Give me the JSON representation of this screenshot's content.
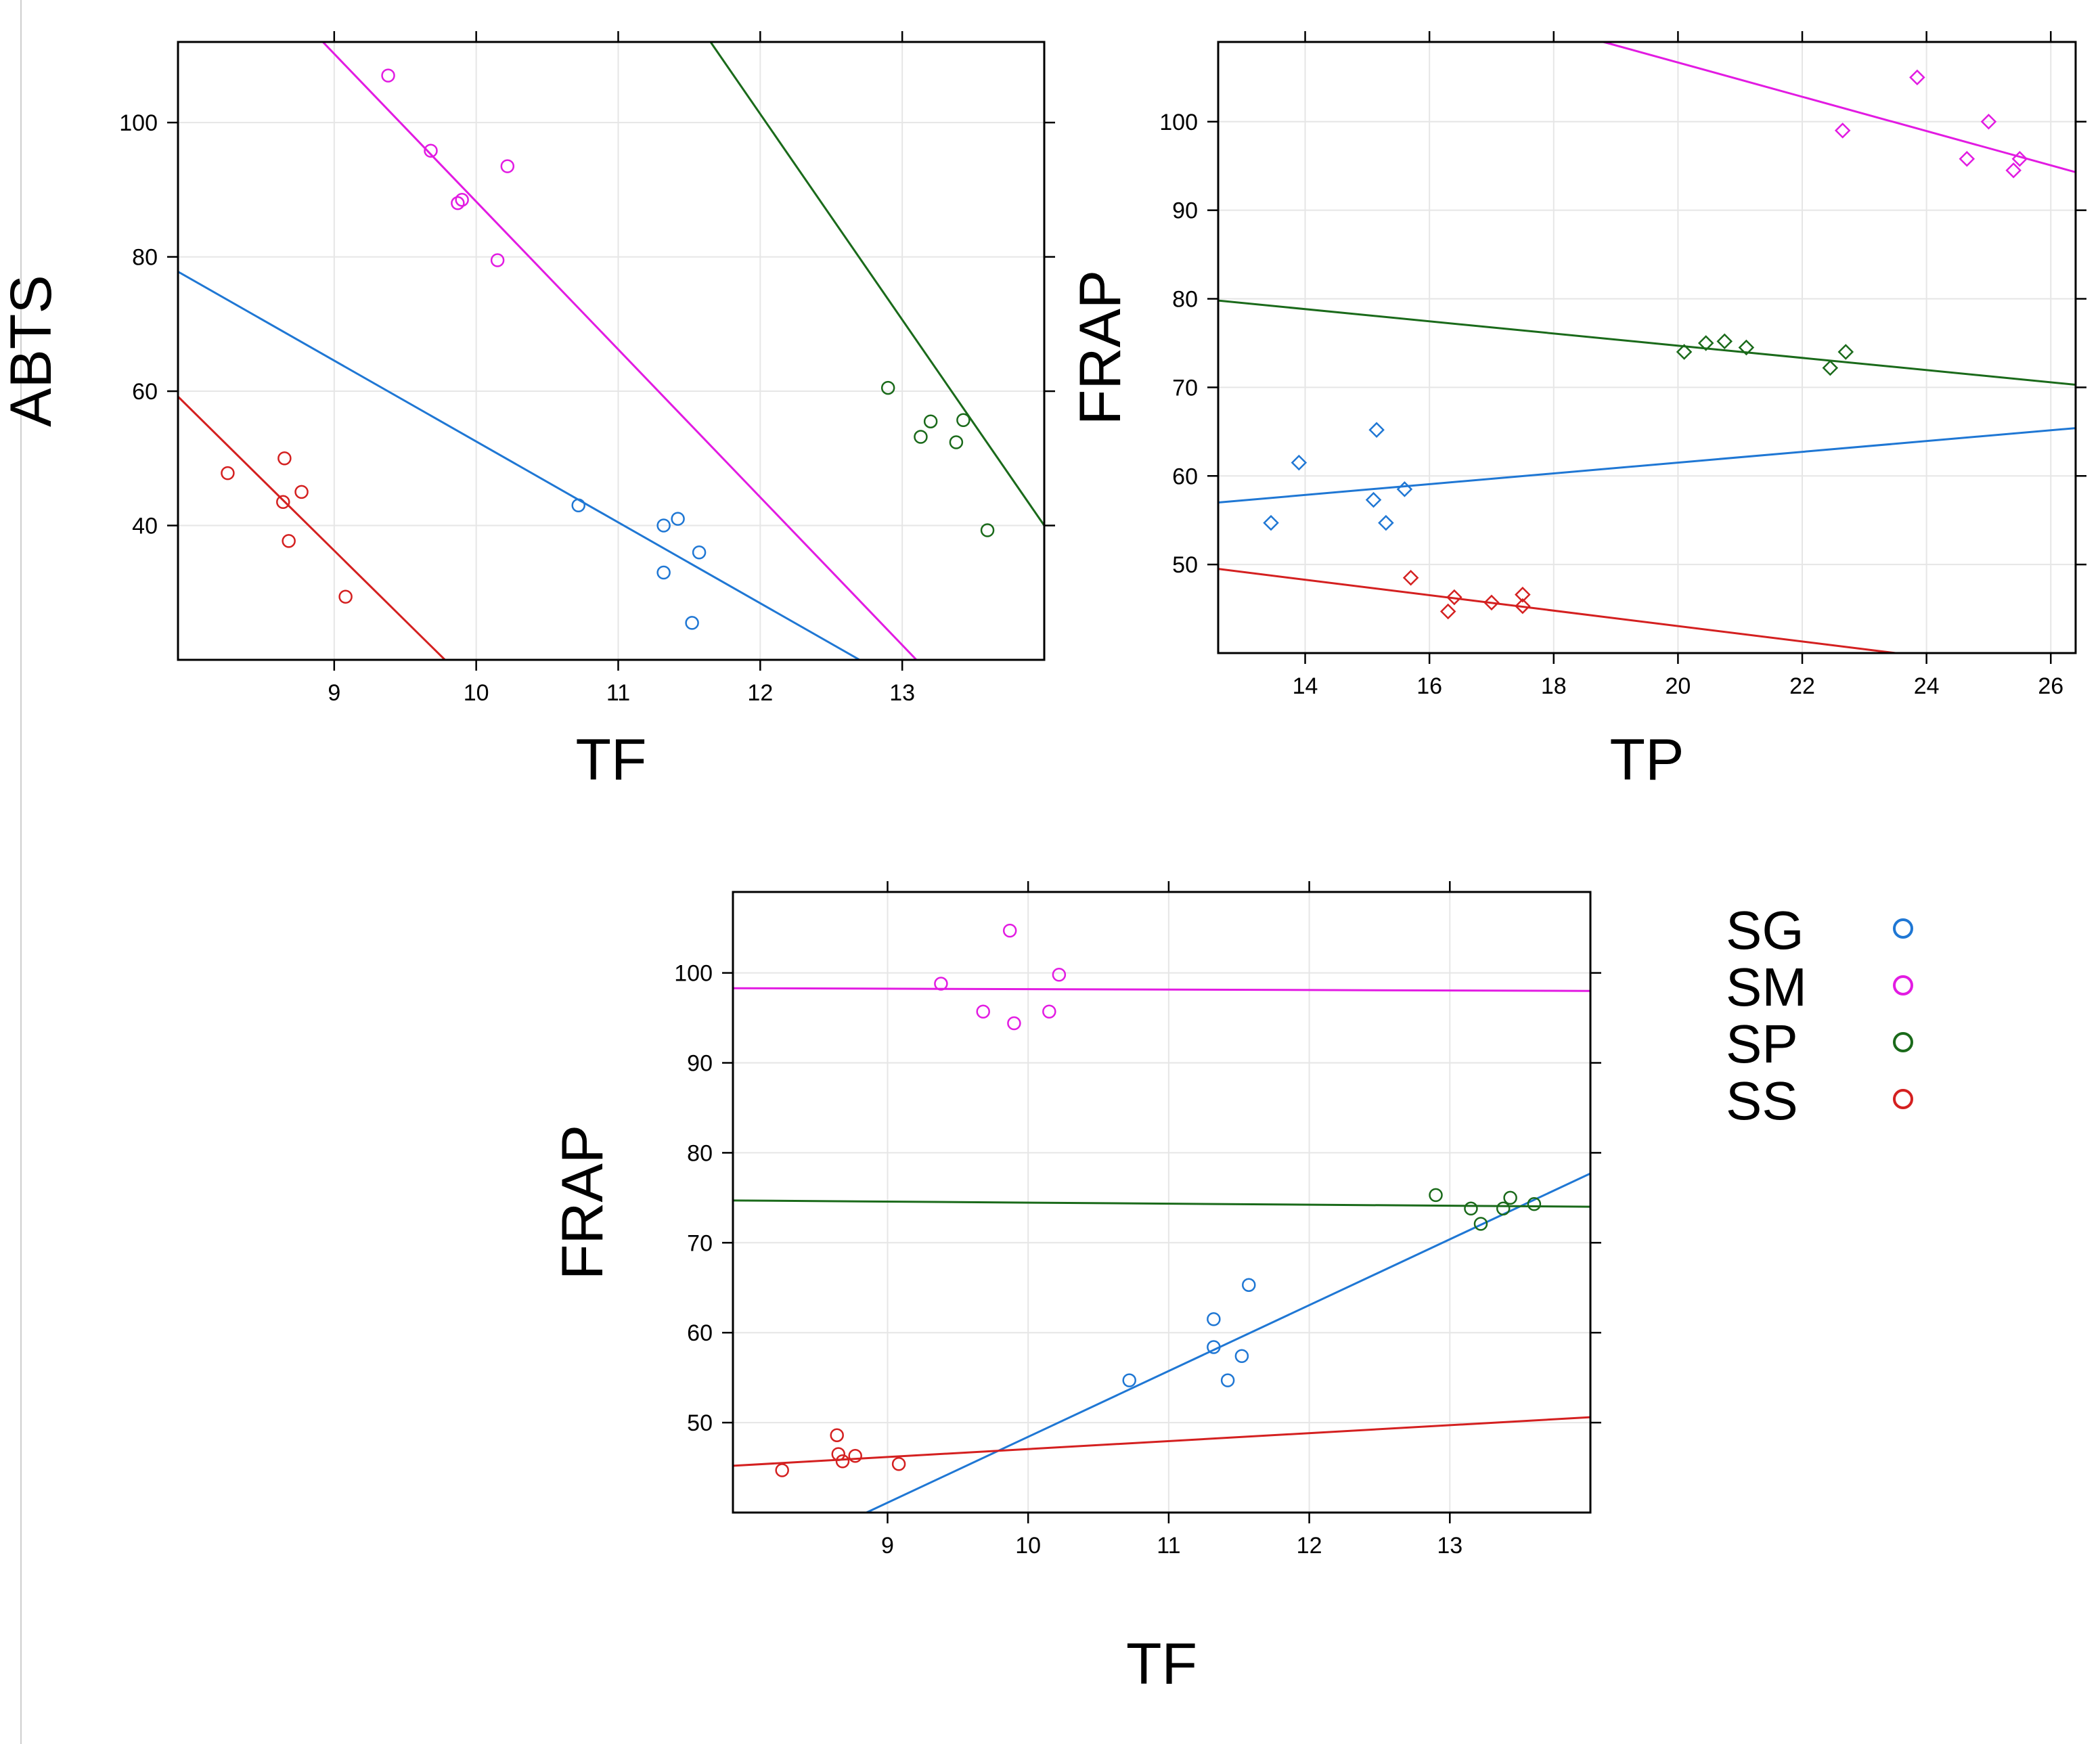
{
  "legend": {
    "items": [
      {
        "name": "SG",
        "color": "#1f77d4"
      },
      {
        "name": "SM",
        "color": "#e21be2"
      },
      {
        "name": "SP",
        "color": "#1a6a1a"
      },
      {
        "name": "SS",
        "color": "#d42020"
      }
    ]
  },
  "chart_data": [
    {
      "id": "panel-a",
      "type": "scatter",
      "xlabel": "TF",
      "ylabel": "ABTS",
      "xlim": [
        7.9,
        14.0
      ],
      "ylim": [
        20,
        112
      ],
      "xticks": [
        9,
        10,
        11,
        12,
        13
      ],
      "yticks": [
        40,
        60,
        80,
        100
      ],
      "marker": "circle",
      "series": [
        {
          "name": "SG",
          "color": "#1f77d4",
          "points": [
            [
              10.72,
              43
            ],
            [
              11.32,
              40
            ],
            [
              11.42,
              41
            ],
            [
              11.32,
              33
            ],
            [
              11.57,
              36
            ],
            [
              11.52,
              25.5
            ]
          ],
          "fit": [
            [
              7.9,
              77.8
            ],
            [
              12.7,
              20
            ]
          ]
        },
        {
          "name": "SM",
          "color": "#e21be2",
          "points": [
            [
              9.38,
              107
            ],
            [
              9.68,
              95.8
            ],
            [
              9.87,
              88
            ],
            [
              9.9,
              88.5
            ],
            [
              10.22,
              93.5
            ],
            [
              10.15,
              79.5
            ]
          ],
          "fit": [
            [
              8.92,
              112
            ],
            [
              13.1,
              20
            ]
          ]
        },
        {
          "name": "SP",
          "color": "#1a6a1a",
          "points": [
            [
              12.9,
              60.5
            ],
            [
              13.2,
              55.5
            ],
            [
              13.43,
              55.7
            ],
            [
              13.13,
              53.2
            ],
            [
              13.38,
              52.4
            ],
            [
              13.6,
              39.3
            ]
          ],
          "fit": [
            [
              11.65,
              112
            ],
            [
              14.0,
              40
            ]
          ]
        },
        {
          "name": "SS",
          "color": "#d42020",
          "points": [
            [
              8.25,
              47.8
            ],
            [
              8.65,
              50
            ],
            [
              8.77,
              45
            ],
            [
              8.64,
              43.5
            ],
            [
              8.68,
              37.7
            ],
            [
              9.08,
              29.4
            ]
          ],
          "fit": [
            [
              7.9,
              59.2
            ],
            [
              9.78,
              20
            ]
          ]
        }
      ]
    },
    {
      "id": "panel-b",
      "type": "scatter",
      "xlabel": "TP",
      "ylabel": "FRAP",
      "xlim": [
        12.6,
        26.4
      ],
      "ylim": [
        40,
        109
      ],
      "xticks": [
        14,
        16,
        18,
        20,
        22,
        24,
        26
      ],
      "yticks": [
        50,
        60,
        70,
        80,
        90,
        100
      ],
      "marker": "diamond",
      "series": [
        {
          "name": "SG",
          "color": "#1f77d4",
          "points": [
            [
              13.45,
              54.7
            ],
            [
              13.9,
              61.5
            ],
            [
              15.1,
              57.3
            ],
            [
              15.15,
              65.2
            ],
            [
              15.3,
              54.7
            ],
            [
              15.6,
              58.5
            ]
          ],
          "fit": [
            [
              12.6,
              57.0
            ],
            [
              26.4,
              65.4
            ]
          ]
        },
        {
          "name": "SM",
          "color": "#e21be2",
          "points": [
            [
              22.65,
              99
            ],
            [
              23.85,
              105
            ],
            [
              24.65,
              95.8
            ],
            [
              25.0,
              100
            ],
            [
              25.4,
              94.5
            ],
            [
              25.5,
              95.8
            ]
          ],
          "fit": [
            [
              18.8,
              109
            ],
            [
              26.4,
              94.3
            ]
          ]
        },
        {
          "name": "SP",
          "color": "#1a6a1a",
          "points": [
            [
              20.1,
              74
            ],
            [
              20.45,
              75
            ],
            [
              20.75,
              75.2
            ],
            [
              21.1,
              74.5
            ],
            [
              22.45,
              72.2
            ],
            [
              22.7,
              74
            ]
          ],
          "fit": [
            [
              12.6,
              79.8
            ],
            [
              26.4,
              70.3
            ]
          ]
        },
        {
          "name": "SS",
          "color": "#d42020",
          "points": [
            [
              15.7,
              48.5
            ],
            [
              16.3,
              44.7
            ],
            [
              16.4,
              46.3
            ],
            [
              17.0,
              45.7
            ],
            [
              17.5,
              45.3
            ],
            [
              17.5,
              46.6
            ]
          ],
          "fit": [
            [
              12.6,
              49.5
            ],
            [
              23.5,
              40
            ]
          ]
        }
      ]
    },
    {
      "id": "panel-c",
      "type": "scatter",
      "xlabel": "TF",
      "ylabel": "FRAP",
      "xlim": [
        7.9,
        14.0
      ],
      "ylim": [
        40,
        109
      ],
      "xticks": [
        9,
        10,
        11,
        12,
        13
      ],
      "yticks": [
        50,
        60,
        70,
        80,
        90,
        100
      ],
      "marker": "circle",
      "series": [
        {
          "name": "SG",
          "color": "#1f77d4",
          "points": [
            [
              10.72,
              54.7
            ],
            [
              11.32,
              61.5
            ],
            [
              11.32,
              58.4
            ],
            [
              11.42,
              54.7
            ],
            [
              11.52,
              57.4
            ],
            [
              11.57,
              65.3
            ]
          ],
          "fit": [
            [
              8.85,
              40
            ],
            [
              14.0,
              77.7
            ]
          ]
        },
        {
          "name": "SM",
          "color": "#e21be2",
          "points": [
            [
              9.38,
              98.8
            ],
            [
              9.68,
              95.7
            ],
            [
              9.87,
              104.7
            ],
            [
              9.9,
              94.4
            ],
            [
              10.15,
              95.7
            ],
            [
              10.22,
              99.8
            ]
          ],
          "fit": [
            [
              7.9,
              98.3
            ],
            [
              14.0,
              98.0
            ]
          ]
        },
        {
          "name": "SP",
          "color": "#1a6a1a",
          "points": [
            [
              12.9,
              75.3
            ],
            [
              13.15,
              73.8
            ],
            [
              13.22,
              72.1
            ],
            [
              13.38,
              73.8
            ],
            [
              13.43,
              75
            ],
            [
              13.6,
              74.3
            ]
          ],
          "fit": [
            [
              7.9,
              74.7
            ],
            [
              14.0,
              74.0
            ]
          ]
        },
        {
          "name": "SS",
          "color": "#d42020",
          "points": [
            [
              8.25,
              44.7
            ],
            [
              8.64,
              48.6
            ],
            [
              8.65,
              46.5
            ],
            [
              8.68,
              45.7
            ],
            [
              8.77,
              46.3
            ],
            [
              9.08,
              45.4
            ]
          ],
          "fit": [
            [
              7.9,
              45.2
            ],
            [
              14.0,
              50.6
            ]
          ]
        }
      ]
    }
  ]
}
